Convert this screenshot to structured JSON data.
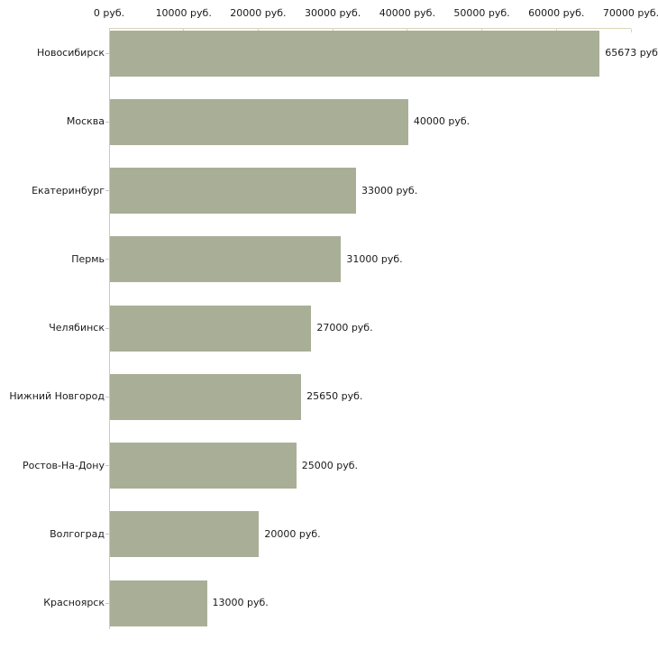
{
  "chart_data": {
    "type": "bar",
    "orientation": "horizontal",
    "title": "",
    "xlabel": "",
    "ylabel": "",
    "unit": "руб.",
    "xlim": [
      0,
      70000
    ],
    "grid": false,
    "legend": false,
    "x_tick_values": [
      0,
      10000,
      20000,
      30000,
      40000,
      50000,
      60000,
      70000
    ],
    "x_tick_labels": [
      "0 руб.",
      "10000 руб.",
      "20000 руб.",
      "30000 руб.",
      "40000 руб.",
      "50000 руб.",
      "60000 руб.",
      "70000 руб."
    ],
    "categories": [
      "Новосибирск",
      "Москва",
      "Екатеринбург",
      "Пермь",
      "Челябинск",
      "Нижний Новгород",
      "Ростов-На-Дону",
      "Волгоград",
      "Красноярск"
    ],
    "values": [
      65673,
      40000,
      33000,
      31000,
      27000,
      25650,
      25000,
      20000,
      13000
    ],
    "value_labels": [
      "65673 руб.",
      "40000 руб.",
      "33000 руб.",
      "31000 руб.",
      "27000 руб.",
      "25650 руб.",
      "25000 руб.",
      "20000 руб.",
      "13000 руб."
    ],
    "colors": {
      "bar": "#a9af97",
      "top_axis": "#d8d5ba",
      "left_axis": "#c9c9c9",
      "text": "#1a1a1a",
      "background": "#ffffff"
    }
  }
}
